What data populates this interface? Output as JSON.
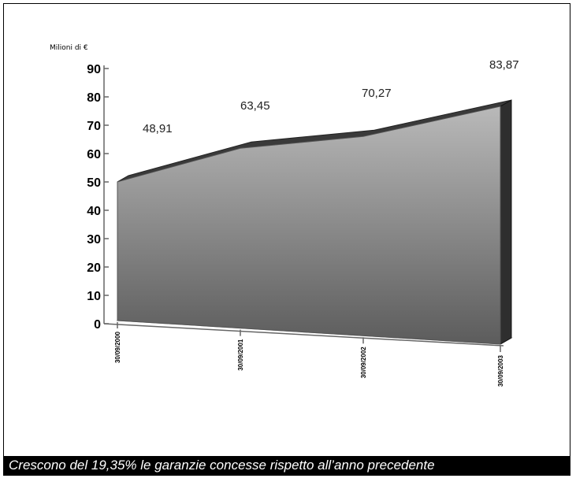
{
  "chart_data": {
    "type": "area",
    "unit_label": "Milioni di €",
    "categories": [
      "30/09/2000",
      "30/09/2001",
      "30/09/2002",
      "30/09/2003"
    ],
    "values": [
      48.91,
      63.45,
      70.27,
      83.87
    ],
    "value_labels": [
      "48,91",
      "63,45",
      "70,27",
      "83,87"
    ],
    "yticks": [
      0,
      10,
      20,
      30,
      40,
      50,
      60,
      70,
      80,
      90
    ],
    "ylim": [
      0,
      90
    ],
    "three_d": true,
    "grid": false,
    "colors": {
      "area_top": "#b9b9b9",
      "area_bottom": "#5c5c5c",
      "ridge": "#3a3a3a",
      "floor": "#e6e6e6"
    }
  },
  "caption": "Crescono del 19,35% le garanzie concesse rispetto all’anno precedente"
}
